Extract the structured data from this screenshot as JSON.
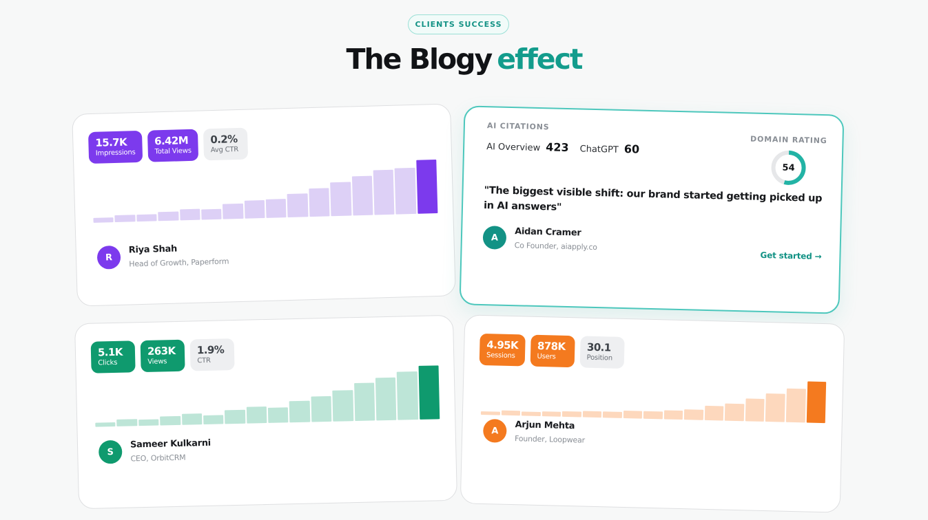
{
  "section": {
    "pill": "CLIENTS SUCCESS",
    "title_main": "The Blogy",
    "title_accent": "effect",
    "accent_color": "#139c8c"
  },
  "cards": [
    {
      "accent": "#7c3aed",
      "bar_light": "#ddd0f6",
      "badges": [
        {
          "value": "15.7K",
          "label": "Impressions"
        },
        {
          "value": "6.42M",
          "label": "Total Views"
        },
        {
          "value": "0.2%",
          "label": "Avg CTR"
        }
      ],
      "bars": [
        0.09,
        0.13,
        0.13,
        0.17,
        0.2,
        0.19,
        0.28,
        0.33,
        0.34,
        0.43,
        0.53,
        0.63,
        0.73,
        0.83,
        0.86,
        1.0
      ],
      "person": {
        "initial": "R",
        "name": "Riya Shah",
        "role": "Head of Growth, Paperform"
      }
    },
    {
      "accent": "#0f9a6e",
      "bar_light": "#bde5d7",
      "badges": [
        {
          "value": "5.1K",
          "label": "Clicks"
        },
        {
          "value": "263K",
          "label": "Views"
        },
        {
          "value": "1.9%",
          "label": "CTR"
        }
      ],
      "bars": [
        0.08,
        0.13,
        0.11,
        0.17,
        0.2,
        0.17,
        0.26,
        0.31,
        0.28,
        0.4,
        0.48,
        0.58,
        0.7,
        0.79,
        0.9,
        1.0
      ],
      "person": {
        "initial": "S",
        "name": "Sameer Kulkarni",
        "role": "CEO, OrbitCRM"
      }
    },
    {
      "accent": "#f47a1f",
      "bar_light": "#fdd8bd",
      "badges": [
        {
          "value": "4.95K",
          "label": "Sessions"
        },
        {
          "value": "878K",
          "label": "Users"
        },
        {
          "value": "30.1",
          "label": "Position"
        }
      ],
      "bars": [
        0.09,
        0.11,
        0.1,
        0.12,
        0.13,
        0.15,
        0.15,
        0.19,
        0.18,
        0.21,
        0.25,
        0.35,
        0.42,
        0.55,
        0.68,
        0.81,
        1.0
      ],
      "person": {
        "initial": "A",
        "name": "Arjun Mehta",
        "role": "Founder, Loopwear"
      }
    }
  ],
  "ai_card": {
    "label": "AI CITATIONS",
    "stats": [
      {
        "key": "AI Overview",
        "value": "423"
      },
      {
        "key": "ChatGPT",
        "value": "60"
      }
    ],
    "domain_rating_label": "DOMAIN RATING",
    "domain_rating": "54",
    "domain_rating_fraction": 0.54,
    "ring_color": "#22b3a5",
    "quote": "\"The biggest visible shift: our brand started getting picked up in AI answers\"",
    "person": {
      "initial": "A",
      "name": "Aidan Cramer",
      "role": "Co Founder, aiapply.co",
      "color": "#139285"
    },
    "cta": "Get started →"
  }
}
